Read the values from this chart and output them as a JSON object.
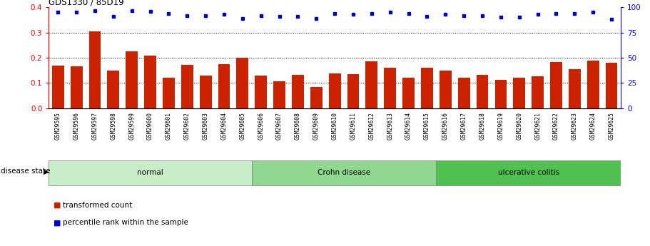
{
  "title": "GDS1330 / 85D19",
  "samples": [
    "GSM29595",
    "GSM29596",
    "GSM29597",
    "GSM29598",
    "GSM29599",
    "GSM29600",
    "GSM29601",
    "GSM29602",
    "GSM29603",
    "GSM29604",
    "GSM29605",
    "GSM29606",
    "GSM29607",
    "GSM29608",
    "GSM29609",
    "GSM29610",
    "GSM29611",
    "GSM29612",
    "GSM29613",
    "GSM29614",
    "GSM29615",
    "GSM29616",
    "GSM29617",
    "GSM29618",
    "GSM29619",
    "GSM29620",
    "GSM29621",
    "GSM29622",
    "GSM29623",
    "GSM29624",
    "GSM29625"
  ],
  "bar_values": [
    0.17,
    0.165,
    0.305,
    0.148,
    0.225,
    0.21,
    0.12,
    0.172,
    0.13,
    0.175,
    0.2,
    0.13,
    0.108,
    0.133,
    0.085,
    0.138,
    0.135,
    0.185,
    0.162,
    0.12,
    0.16,
    0.15,
    0.121,
    0.132,
    0.113,
    0.122,
    0.128,
    0.183,
    0.155,
    0.19,
    0.18
  ],
  "dot_values_pct": [
    95,
    95,
    97,
    91,
    97,
    96,
    94,
    92,
    92,
    93,
    89,
    92,
    91,
    91,
    89,
    94,
    93,
    94,
    95,
    94,
    91,
    93,
    92,
    92,
    90,
    90,
    93,
    94,
    94,
    95,
    88
  ],
  "groups": [
    {
      "label": "normal",
      "start": 0,
      "end": 10,
      "color": "#c8eec8"
    },
    {
      "label": "Crohn disease",
      "start": 11,
      "end": 20,
      "color": "#90d890"
    },
    {
      "label": "ulcerative colitis",
      "start": 21,
      "end": 30,
      "color": "#50c050"
    }
  ],
  "bar_color": "#cc2200",
  "dot_color": "#0000cc",
  "ylim_left": [
    0,
    0.4
  ],
  "ylim_right": [
    0,
    100
  ],
  "yticks_left": [
    0,
    0.1,
    0.2,
    0.3,
    0.4
  ],
  "yticks_right": [
    0,
    25,
    50,
    75,
    100
  ],
  "grid_lines": [
    0.1,
    0.2,
    0.3
  ],
  "legend_items": [
    {
      "label": "transformed count",
      "color": "#cc2200"
    },
    {
      "label": "percentile rank within the sample",
      "color": "#0000cc"
    }
  ],
  "disease_state_label": "disease state",
  "xtick_bg": "#c8c8c8",
  "bar_width": 0.65
}
